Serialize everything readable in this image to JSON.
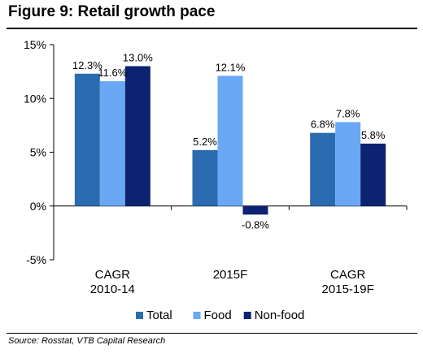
{
  "figure": {
    "title": "Figure 9: Retail growth pace",
    "source": "Source: Rosstat, VTB Capital Research"
  },
  "colors": {
    "total": "#2b6cb0",
    "food": "#6aa7f5",
    "nonfood": "#0b2370"
  },
  "chart_data": {
    "type": "bar",
    "categories": [
      [
        "CAGR",
        "2010-14"
      ],
      [
        "2015F"
      ],
      [
        "CAGR",
        "2015-19F"
      ]
    ],
    "series": [
      {
        "name": "Total",
        "values": [
          12.3,
          5.2,
          6.8
        ],
        "labels": [
          "12.3%",
          "5.2%",
          "6.8%"
        ],
        "color": "#2b6cb0"
      },
      {
        "name": "Food",
        "values": [
          11.6,
          12.1,
          7.8
        ],
        "labels": [
          "11.6%",
          "12.1%",
          "7.8%"
        ],
        "color": "#6aa7f5"
      },
      {
        "name": "Non-food",
        "values": [
          13.0,
          -0.8,
          5.8
        ],
        "labels": [
          "13.0%",
          "-0.8%",
          "5.8%"
        ],
        "color": "#0b2370"
      }
    ],
    "ylim": [
      -5,
      15
    ],
    "yticks": [
      -5,
      0,
      5,
      10,
      15
    ],
    "ytick_labels": [
      "-5%",
      "0%",
      "5%",
      "10%",
      "15%"
    ],
    "xlabel": "",
    "ylabel": "",
    "grid": false,
    "legend_position": "bottom"
  }
}
